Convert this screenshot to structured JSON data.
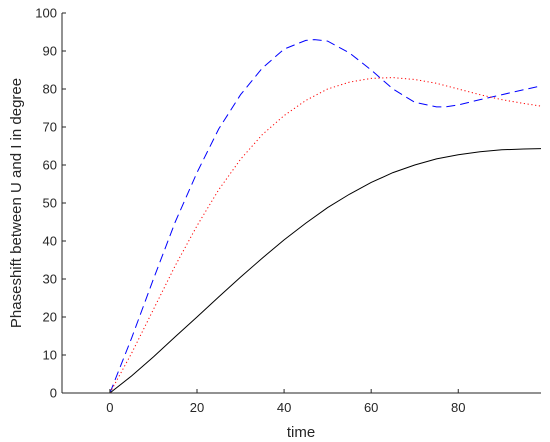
{
  "chart_data": {
    "type": "line",
    "title": "",
    "xlabel": "time",
    "ylabel": "Phaseshift between U and I in degree",
    "xlim": [
      -11,
      99
    ],
    "ylim": [
      0,
      100
    ],
    "xticks": [
      0,
      20,
      40,
      60,
      80
    ],
    "yticks": [
      0,
      10,
      20,
      30,
      40,
      50,
      60,
      70,
      80,
      90,
      100
    ],
    "grid": false,
    "legend": "none",
    "series": [
      {
        "style": "solid",
        "color": "#000000",
        "x": [
          0,
          5,
          10,
          15,
          20,
          25,
          30,
          35,
          40,
          45,
          50,
          55,
          60,
          65,
          70,
          75,
          80,
          85,
          90,
          95,
          99
        ],
        "y": [
          0,
          4.5,
          9.5,
          14.8,
          20.0,
          25.3,
          30.5,
          35.5,
          40.3,
          44.7,
          48.8,
          52.3,
          55.4,
          58.0,
          60.0,
          61.6,
          62.7,
          63.5,
          64.0,
          64.2,
          64.3
        ]
      },
      {
        "style": "dashed",
        "color": "#0000ff",
        "x": [
          0,
          5,
          10,
          15,
          20,
          25,
          30,
          35,
          40,
          45,
          47,
          50,
          55,
          60,
          65,
          70,
          75,
          77,
          80,
          85,
          90,
          95,
          99
        ],
        "y": [
          0,
          14.5,
          30.0,
          45.0,
          58.0,
          69.5,
          78.5,
          85.5,
          90.5,
          92.8,
          93.0,
          92.6,
          89.5,
          85.0,
          80.0,
          76.5,
          75.3,
          75.3,
          75.8,
          77.2,
          78.5,
          79.8,
          80.8
        ]
      },
      {
        "style": "dotted",
        "color": "#ff0000",
        "x": [
          0,
          5,
          10,
          15,
          20,
          25,
          30,
          35,
          40,
          45,
          50,
          55,
          60,
          65,
          70,
          75,
          80,
          85,
          90,
          95,
          99
        ],
        "y": [
          0,
          10.5,
          22.0,
          33.5,
          44.0,
          53.5,
          61.5,
          68.0,
          73.0,
          77.0,
          80.0,
          81.8,
          82.8,
          83.0,
          82.5,
          81.5,
          80.0,
          78.5,
          77.2,
          76.2,
          75.5
        ]
      }
    ]
  }
}
